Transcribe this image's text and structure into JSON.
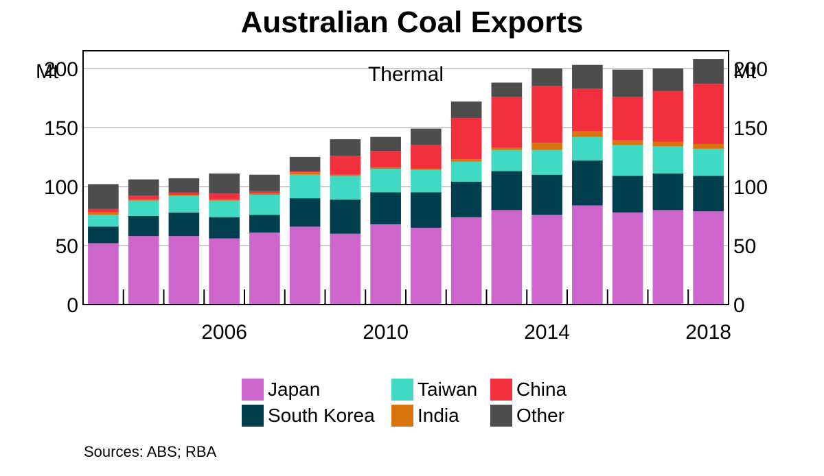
{
  "page": {
    "title": "Australian Coal Exports",
    "source": "Sources: ABS; RBA"
  },
  "chart_data": {
    "type": "bar",
    "stacked": true,
    "title": "Australian Coal Exports",
    "panel_title": "Thermal",
    "unit_left": "Mt",
    "unit_right": "Mt",
    "ylim": [
      0,
      215
    ],
    "yticks": [
      0,
      50,
      100,
      150,
      200
    ],
    "grid": true,
    "x": [
      2003,
      2004,
      2005,
      2006,
      2007,
      2008,
      2009,
      2010,
      2011,
      2012,
      2013,
      2014,
      2015,
      2016,
      2017,
      2018
    ],
    "xtick_labels": [
      "2006",
      "2010",
      "2014",
      "2018"
    ],
    "series": [
      {
        "name": "Japan",
        "color": "#cc66cc",
        "values": [
          52,
          58,
          58,
          56,
          61,
          66,
          60,
          68,
          65,
          74,
          80,
          76,
          84,
          78,
          80,
          79
        ]
      },
      {
        "name": "South Korea",
        "color": "#003d4d",
        "values": [
          14,
          17,
          20,
          18,
          15,
          24,
          29,
          27,
          30,
          30,
          33,
          34,
          38,
          31,
          31,
          30
        ]
      },
      {
        "name": "Taiwan",
        "color": "#40d9c4",
        "values": [
          10,
          13,
          14,
          14,
          17,
          20,
          20,
          20,
          19,
          17,
          18,
          21,
          20,
          26,
          23,
          23
        ]
      },
      {
        "name": "India",
        "color": "#d9730d",
        "values": [
          2,
          1,
          1,
          1,
          1,
          2,
          1,
          1,
          1,
          2,
          2,
          6,
          5,
          4,
          4,
          4
        ]
      },
      {
        "name": "China",
        "color": "#f22f3d",
        "values": [
          3,
          3,
          2,
          5,
          2,
          1,
          16,
          14,
          20,
          35,
          43,
          48,
          36,
          37,
          43,
          51
        ]
      },
      {
        "name": "Other",
        "color": "#4d4d4d",
        "values": [
          21,
          14,
          12,
          17,
          14,
          12,
          14,
          12,
          14,
          14,
          12,
          15,
          20,
          23,
          19,
          21
        ]
      }
    ],
    "legend_position": "bottom"
  }
}
